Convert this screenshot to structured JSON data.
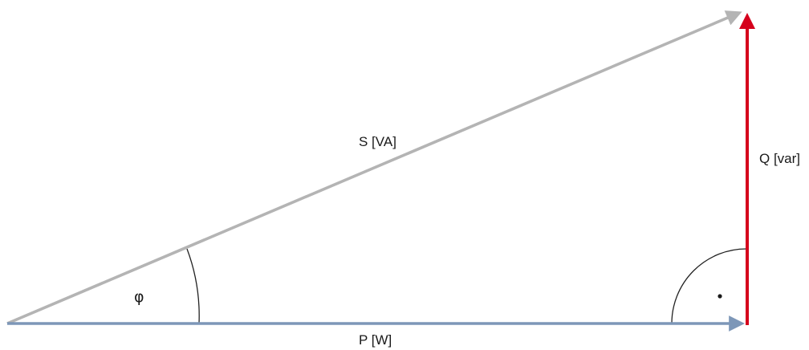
{
  "diagram": {
    "labels": {
      "apparent_power": "S [VA]",
      "reactive_power": "Q [var]",
      "active_power": "P [W]",
      "angle": "φ"
    },
    "colors": {
      "apparent_power": "#b4b4b4",
      "reactive_power": "#d5001c",
      "active_power": "#7d97b8",
      "arcs": "#222222"
    },
    "right_angle_dot": "·"
  }
}
